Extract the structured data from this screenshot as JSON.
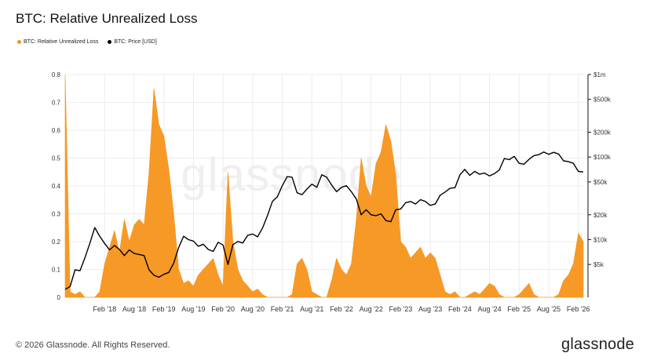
{
  "header": {
    "title": "BTC: Relative Unrealized Loss"
  },
  "legend": [
    {
      "label": "BTC: Relative Unrealized Loss",
      "color": "#F7931A"
    },
    {
      "label": "BTC: Price [USD]",
      "color": "#000000"
    }
  ],
  "footer": {
    "copyright": "© 2026 Glassnode. All Rights Reserved.",
    "brand": "glassnode"
  },
  "watermark": "glassnode",
  "chart_data": {
    "type": "area",
    "title": "BTC: Relative Unrealized Loss",
    "left_axis": {
      "ticks": [
        "0",
        "0.1",
        "0.2",
        "0.3",
        "0.4",
        "0.5",
        "0.6",
        "0.7",
        "0.8"
      ],
      "range": [
        0,
        0.8
      ]
    },
    "right_axis": {
      "scale": "log",
      "ticks": [
        "$5k",
        "$10k",
        "$20k",
        "$50k",
        "$100k",
        "$200k",
        "$500k",
        "$1m"
      ],
      "range": [
        2000,
        1000000
      ]
    },
    "x_axis": {
      "ticks": [
        "Feb '18",
        "Aug '18",
        "Feb '19",
        "Aug '19",
        "Feb '20",
        "Aug '20",
        "Feb '21",
        "Aug '21",
        "Feb '22",
        "Aug '22",
        "Feb '23",
        "Aug '23",
        "Feb '24",
        "Aug '24",
        "Feb '25",
        "Aug '25",
        "Feb '26"
      ],
      "range": [
        "2017-06",
        "2026-03"
      ]
    },
    "grid": true,
    "series": [
      {
        "name": "BTC: Relative Unrealized Loss",
        "axis": "left",
        "color": "#F7931A",
        "points": [
          [
            "2017-06",
            0.8
          ],
          [
            "2017-07",
            0.02
          ],
          [
            "2017-08",
            0.01
          ],
          [
            "2017-09",
            0.02
          ],
          [
            "2017-10",
            0.0
          ],
          [
            "2017-11",
            0.0
          ],
          [
            "2017-12",
            0.0
          ],
          [
            "2018-01",
            0.02
          ],
          [
            "2018-02",
            0.12
          ],
          [
            "2018-03",
            0.18
          ],
          [
            "2018-04",
            0.24
          ],
          [
            "2018-05",
            0.16
          ],
          [
            "2018-06",
            0.28
          ],
          [
            "2018-07",
            0.2
          ],
          [
            "2018-08",
            0.26
          ],
          [
            "2018-09",
            0.28
          ],
          [
            "2018-10",
            0.26
          ],
          [
            "2018-11",
            0.45
          ],
          [
            "2018-12",
            0.75
          ],
          [
            "2019-01",
            0.62
          ],
          [
            "2019-02",
            0.58
          ],
          [
            "2019-03",
            0.46
          ],
          [
            "2019-04",
            0.3
          ],
          [
            "2019-05",
            0.1
          ],
          [
            "2019-06",
            0.05
          ],
          [
            "2019-07",
            0.06
          ],
          [
            "2019-08",
            0.04
          ],
          [
            "2019-09",
            0.08
          ],
          [
            "2019-10",
            0.1
          ],
          [
            "2019-11",
            0.12
          ],
          [
            "2019-12",
            0.14
          ],
          [
            "2020-01",
            0.08
          ],
          [
            "2020-02",
            0.04
          ],
          [
            "2020-03",
            0.45
          ],
          [
            "2020-04",
            0.2
          ],
          [
            "2020-05",
            0.1
          ],
          [
            "2020-06",
            0.06
          ],
          [
            "2020-07",
            0.04
          ],
          [
            "2020-08",
            0.02
          ],
          [
            "2020-09",
            0.03
          ],
          [
            "2020-10",
            0.01
          ],
          [
            "2020-11",
            0.0
          ],
          [
            "2020-12",
            0.0
          ],
          [
            "2021-01",
            0.0
          ],
          [
            "2021-02",
            0.0
          ],
          [
            "2021-03",
            0.0
          ],
          [
            "2021-04",
            0.01
          ],
          [
            "2021-05",
            0.12
          ],
          [
            "2021-06",
            0.14
          ],
          [
            "2021-07",
            0.1
          ],
          [
            "2021-08",
            0.02
          ],
          [
            "2021-09",
            0.01
          ],
          [
            "2021-10",
            0.0
          ],
          [
            "2021-11",
            0.0
          ],
          [
            "2021-12",
            0.06
          ],
          [
            "2022-01",
            0.14
          ],
          [
            "2022-02",
            0.1
          ],
          [
            "2022-03",
            0.08
          ],
          [
            "2022-04",
            0.12
          ],
          [
            "2022-05",
            0.28
          ],
          [
            "2022-06",
            0.5
          ],
          [
            "2022-07",
            0.4
          ],
          [
            "2022-08",
            0.36
          ],
          [
            "2022-09",
            0.48
          ],
          [
            "2022-10",
            0.52
          ],
          [
            "2022-11",
            0.62
          ],
          [
            "2022-12",
            0.56
          ],
          [
            "2023-01",
            0.44
          ],
          [
            "2023-02",
            0.2
          ],
          [
            "2023-03",
            0.18
          ],
          [
            "2023-04",
            0.14
          ],
          [
            "2023-05",
            0.16
          ],
          [
            "2023-06",
            0.18
          ],
          [
            "2023-07",
            0.14
          ],
          [
            "2023-08",
            0.16
          ],
          [
            "2023-09",
            0.14
          ],
          [
            "2023-10",
            0.08
          ],
          [
            "2023-11",
            0.02
          ],
          [
            "2023-12",
            0.01
          ],
          [
            "2024-01",
            0.02
          ],
          [
            "2024-02",
            0.0
          ],
          [
            "2024-03",
            0.0
          ],
          [
            "2024-04",
            0.01
          ],
          [
            "2024-05",
            0.02
          ],
          [
            "2024-06",
            0.01
          ],
          [
            "2024-07",
            0.03
          ],
          [
            "2024-08",
            0.05
          ],
          [
            "2024-09",
            0.04
          ],
          [
            "2024-10",
            0.01
          ],
          [
            "2024-11",
            0.0
          ],
          [
            "2024-12",
            0.0
          ],
          [
            "2025-01",
            0.0
          ],
          [
            "2025-02",
            0.01
          ],
          [
            "2025-03",
            0.03
          ],
          [
            "2025-04",
            0.05
          ],
          [
            "2025-05",
            0.01
          ],
          [
            "2025-06",
            0.0
          ],
          [
            "2025-07",
            0.0
          ],
          [
            "2025-08",
            0.0
          ],
          [
            "2025-09",
            0.0
          ],
          [
            "2025-10",
            0.01
          ],
          [
            "2025-11",
            0.06
          ],
          [
            "2025-12",
            0.08
          ],
          [
            "2026-01",
            0.12
          ],
          [
            "2026-02",
            0.23
          ],
          [
            "2026-03",
            0.2
          ]
        ]
      },
      {
        "name": "BTC: Price [USD]",
        "axis": "right",
        "color": "#000000",
        "points": [
          [
            "2017-06",
            2500
          ],
          [
            "2017-07",
            2700
          ],
          [
            "2017-08",
            4300
          ],
          [
            "2017-09",
            4200
          ],
          [
            "2017-10",
            6000
          ],
          [
            "2017-11",
            9000
          ],
          [
            "2017-12",
            14000
          ],
          [
            "2018-01",
            11000
          ],
          [
            "2018-02",
            9000
          ],
          [
            "2018-03",
            7500
          ],
          [
            "2018-04",
            8500
          ],
          [
            "2018-05",
            7600
          ],
          [
            "2018-06",
            6400
          ],
          [
            "2018-07",
            7500
          ],
          [
            "2018-08",
            6800
          ],
          [
            "2018-09",
            6600
          ],
          [
            "2018-10",
            6400
          ],
          [
            "2018-11",
            4300
          ],
          [
            "2018-12",
            3700
          ],
          [
            "2019-01",
            3500
          ],
          [
            "2019-02",
            3800
          ],
          [
            "2019-03",
            4000
          ],
          [
            "2019-04",
            5200
          ],
          [
            "2019-05",
            8000
          ],
          [
            "2019-06",
            11000
          ],
          [
            "2019-07",
            10000
          ],
          [
            "2019-08",
            9600
          ],
          [
            "2019-09",
            8300
          ],
          [
            "2019-10",
            8800
          ],
          [
            "2019-11",
            7600
          ],
          [
            "2019-12",
            7200
          ],
          [
            "2020-01",
            9300
          ],
          [
            "2020-02",
            8600
          ],
          [
            "2020-03",
            5000
          ],
          [
            "2020-04",
            8700
          ],
          [
            "2020-05",
            9500
          ],
          [
            "2020-06",
            9100
          ],
          [
            "2020-07",
            11300
          ],
          [
            "2020-08",
            11700
          ],
          [
            "2020-09",
            10800
          ],
          [
            "2020-10",
            13800
          ],
          [
            "2020-11",
            19500
          ],
          [
            "2020-12",
            29000
          ],
          [
            "2021-01",
            33000
          ],
          [
            "2021-02",
            45000
          ],
          [
            "2021-03",
            58000
          ],
          [
            "2021-04",
            57000
          ],
          [
            "2021-05",
            37000
          ],
          [
            "2021-06",
            35000
          ],
          [
            "2021-07",
            41000
          ],
          [
            "2021-08",
            47000
          ],
          [
            "2021-09",
            43000
          ],
          [
            "2021-10",
            61000
          ],
          [
            "2021-11",
            57000
          ],
          [
            "2021-12",
            46000
          ],
          [
            "2022-01",
            38000
          ],
          [
            "2022-02",
            43000
          ],
          [
            "2022-03",
            45000
          ],
          [
            "2022-04",
            38000
          ],
          [
            "2022-05",
            31000
          ],
          [
            "2022-06",
            20000
          ],
          [
            "2022-07",
            23000
          ],
          [
            "2022-08",
            20000
          ],
          [
            "2022-09",
            19500
          ],
          [
            "2022-10",
            20500
          ],
          [
            "2022-11",
            17000
          ],
          [
            "2022-12",
            16500
          ],
          [
            "2023-01",
            23000
          ],
          [
            "2023-02",
            23500
          ],
          [
            "2023-03",
            28000
          ],
          [
            "2023-04",
            29000
          ],
          [
            "2023-05",
            27000
          ],
          [
            "2023-06",
            30500
          ],
          [
            "2023-07",
            29000
          ],
          [
            "2023-08",
            26000
          ],
          [
            "2023-09",
            27000
          ],
          [
            "2023-10",
            34500
          ],
          [
            "2023-11",
            37700
          ],
          [
            "2023-12",
            42000
          ],
          [
            "2024-01",
            42500
          ],
          [
            "2024-02",
            61000
          ],
          [
            "2024-03",
            71000
          ],
          [
            "2024-04",
            60000
          ],
          [
            "2024-05",
            67000
          ],
          [
            "2024-06",
            62000
          ],
          [
            "2024-07",
            64000
          ],
          [
            "2024-08",
            59000
          ],
          [
            "2024-09",
            63000
          ],
          [
            "2024-10",
            70000
          ],
          [
            "2024-11",
            96000
          ],
          [
            "2024-12",
            93000
          ],
          [
            "2025-01",
            102000
          ],
          [
            "2025-02",
            84000
          ],
          [
            "2025-03",
            82000
          ],
          [
            "2025-04",
            94000
          ],
          [
            "2025-05",
            104000
          ],
          [
            "2025-06",
            107000
          ],
          [
            "2025-07",
            115000
          ],
          [
            "2025-08",
            108000
          ],
          [
            "2025-09",
            114000
          ],
          [
            "2025-10",
            109000
          ],
          [
            "2025-11",
            90000
          ],
          [
            "2025-12",
            88000
          ],
          [
            "2026-01",
            84000
          ],
          [
            "2026-02",
            67000
          ],
          [
            "2026-03",
            66000
          ]
        ]
      }
    ]
  }
}
